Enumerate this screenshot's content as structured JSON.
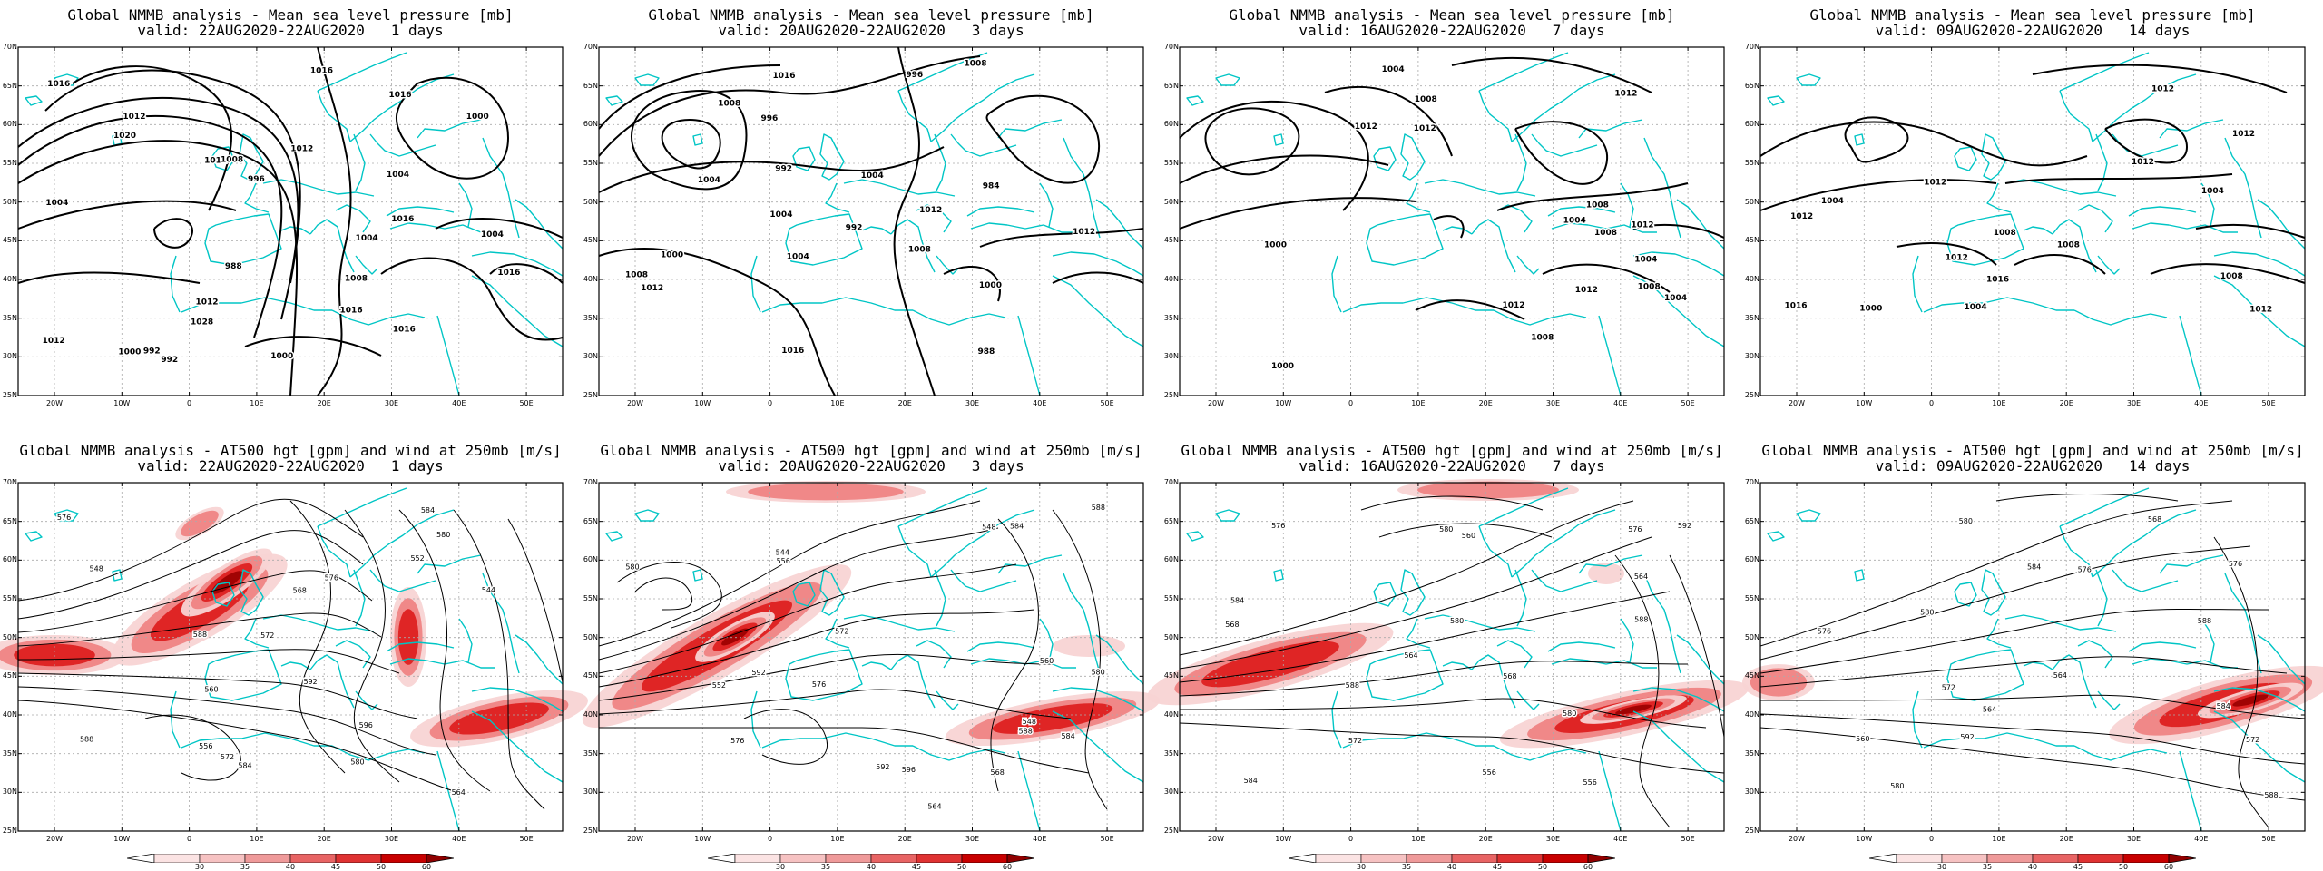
{
  "colors": {
    "coast": "#00c5c5",
    "contour": "#000000",
    "grid": "#aaaaaa",
    "jet_light": "#f8d4d4",
    "jet_mid": "#ef7a7a",
    "jet_strong": "#dd1b1b",
    "jet_max": "#9a0000"
  },
  "axes": {
    "lat_labels": [
      "70N",
      "65N",
      "60N",
      "55N",
      "50N",
      "45N",
      "40N",
      "35N",
      "30N",
      "25N"
    ],
    "lon_labels": [
      "20W",
      "10W",
      "0",
      "10E",
      "20E",
      "30E",
      "40E",
      "50E"
    ]
  },
  "colorbar": {
    "labels": [
      "30",
      "35",
      "40",
      "45",
      "50",
      "60"
    ]
  },
  "mslp_panels": [
    {
      "title": "Global NMMB analysis - Mean sea level pressure [mb]",
      "subtitle": "valid: 22AUG2020-22AUG2020   1 days",
      "contour_labels": [
        "992",
        "988",
        "992",
        "996",
        "1000",
        "1004",
        "1008",
        "1012",
        "1016",
        "1020",
        "1028",
        "1016",
        "1012",
        "1016",
        "1016",
        "1012",
        "1016",
        "1008",
        "1004",
        "1000",
        "1004",
        "1012",
        "1000",
        "1004",
        "1012",
        "1016",
        "1016"
      ]
    },
    {
      "title": "Global NMMB analysis - Mean sea level pressure [mb]",
      "subtitle": "valid: 20AUG2020-22AUG2020   3 days",
      "contour_labels": [
        "1012",
        "1008",
        "1004",
        "996",
        "992",
        "988",
        "984",
        "992",
        "996",
        "1000",
        "1004",
        "1008",
        "1012",
        "1016",
        "1012",
        "1008",
        "1004",
        "1000",
        "1004",
        "1016",
        "1008"
      ]
    },
    {
      "title": "Global NMMB analysis - Mean sea level pressure [mb]",
      "subtitle": "valid: 16AUG2020-22AUG2020   7 days",
      "contour_labels": [
        "1012",
        "1008",
        "1004",
        "1000",
        "1008",
        "1004",
        "1012",
        "1012",
        "1012",
        "1012",
        "1008",
        "1008",
        "1004",
        "1004",
        "1000",
        "1008",
        "1012"
      ]
    },
    {
      "title": "Global NMMB analysis - Mean sea level pressure [mb]",
      "subtitle": "valid: 09AUG2020-22AUG2020   14 days",
      "contour_labels": [
        "1012",
        "1012",
        "1008",
        "1016",
        "1016",
        "1012",
        "1012",
        "1012",
        "1012",
        "1008",
        "1004",
        "1004",
        "1000",
        "1008",
        "1012",
        "1004"
      ]
    }
  ],
  "jet_panels": [
    {
      "title": "Global NMMB analysis - AT500 hgt [gpm] and wind at 250mb [m/s]",
      "subtitle": "valid: 22AUG2020-22AUG2020   1 days",
      "contour_labels": [
        "544",
        "548",
        "552",
        "556",
        "560",
        "564",
        "568",
        "572",
        "576",
        "580",
        "584",
        "588",
        "592",
        "596",
        "572",
        "576",
        "584",
        "588",
        "580"
      ]
    },
    {
      "title": "Global NMMB analysis - AT500 hgt [gpm] and wind at 250mb [m/s]",
      "subtitle": "valid: 20AUG2020-22AUG2020   3 days",
      "contour_labels": [
        "548",
        "544",
        "548",
        "552",
        "556",
        "560",
        "564",
        "568",
        "572",
        "576",
        "580",
        "584",
        "588",
        "592",
        "596",
        "576",
        "580",
        "584",
        "588",
        "592"
      ]
    },
    {
      "title": "Global NMMB analysis - AT500 hgt [gpm] and wind at 250mb [m/s]",
      "subtitle": "valid: 16AUG2020-22AUG2020   7 days",
      "contour_labels": [
        "556",
        "560",
        "564",
        "568",
        "572",
        "576",
        "580",
        "584",
        "588",
        "592",
        "576",
        "580",
        "584",
        "588",
        "556",
        "564",
        "568",
        "580"
      ]
    },
    {
      "title": "Global NMMB analysis - AT500 hgt [gpm] and wind at 250mb [m/s]",
      "subtitle": "valid: 09AUG2020-22AUG2020   14 days",
      "contour_labels": [
        "564",
        "568",
        "572",
        "576",
        "580",
        "584",
        "588",
        "592",
        "560",
        "564",
        "572",
        "576",
        "580",
        "584",
        "588",
        "576",
        "580"
      ]
    }
  ]
}
